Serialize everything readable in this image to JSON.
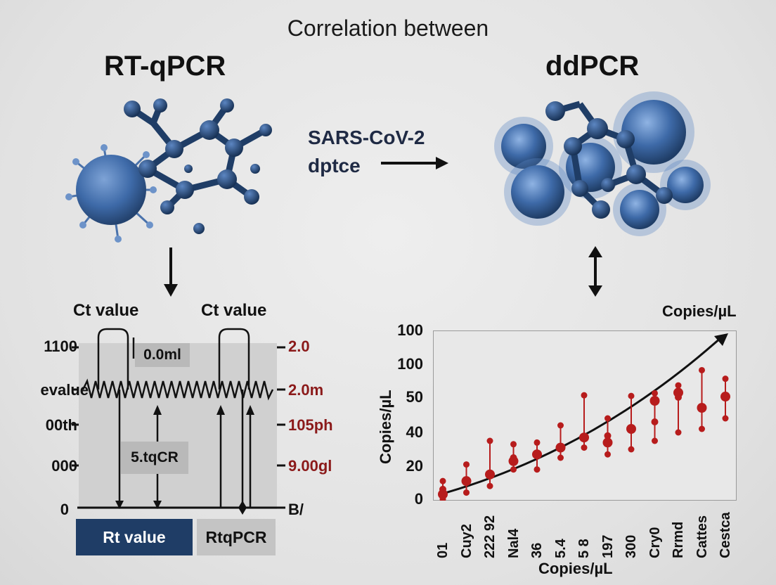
{
  "title": "Correlation between",
  "left_heading": "RT-qPCR",
  "right_heading": "ddPCR",
  "middle_label_line1": "SARS-CoV-2",
  "middle_label_line2": "dptce",
  "colors": {
    "molecule": "#1f3d66",
    "molecule_light": "#3e6aa8",
    "red": "#b71c1c",
    "blue_button": "#1f3d66"
  },
  "left_diagram": {
    "ct_label_left": "Ct value",
    "ct_label_right": "Ct value",
    "left_axis": [
      "1100",
      "evalue",
      "00th",
      "000",
      "0"
    ],
    "right_axis": [
      "2.0",
      "2.0m",
      "105ph",
      "9.00gl",
      "B/"
    ],
    "box_top": "0.0ml",
    "box_mid": "5.tqCR",
    "button_left": "Rt value",
    "button_right": "RtqPCR"
  },
  "chart_data": {
    "type": "scatter",
    "title": "Copies/µL",
    "xlabel": "Copies/µL",
    "ylabel": "Copies/µL",
    "y_tick_labels": [
      "100",
      "100",
      "50",
      "40",
      "20",
      "0"
    ],
    "categories": [
      "01",
      "Cuy2",
      "222 92",
      "Nal4",
      "36",
      "5.4",
      "5 8",
      "197",
      "300",
      "Cry0",
      "Rrmd",
      "Cattes",
      "Cestca"
    ],
    "points_center": [
      3,
      11,
      15,
      23,
      27,
      31,
      37,
      34,
      41,
      49,
      57,
      47,
      51
    ],
    "points_low": [
      0,
      4,
      8,
      18,
      18,
      25,
      31,
      27,
      30,
      35,
      40,
      41,
      44
    ],
    "points_high": [
      11,
      21,
      35,
      33,
      34,
      42,
      53,
      44,
      52,
      56,
      68,
      91,
      78
    ],
    "points_extra": [
      [
        6
      ],
      [
        null
      ],
      [
        null
      ],
      [
        25
      ],
      [
        null
      ],
      [
        null
      ],
      [
        null
      ],
      [
        38
      ],
      [
        null
      ],
      [
        43
      ],
      [
        50
      ],
      [
        null
      ],
      [
        null
      ]
    ],
    "trend_arrow": true,
    "grid": false
  }
}
